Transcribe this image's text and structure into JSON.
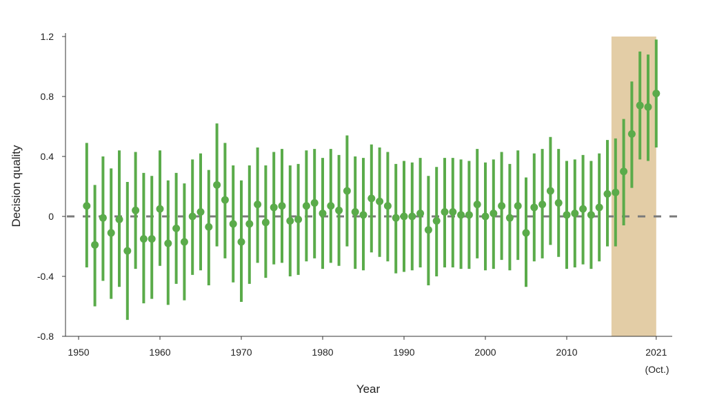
{
  "chart_data": {
    "type": "scatter",
    "subtype": "point-with-error-bars",
    "title": "",
    "xlabel": "Year",
    "ylabel": "Decision quality",
    "ylim": [
      -0.8,
      1.2
    ],
    "xlim": [
      1950,
      2021
    ],
    "y_ticks": [
      "1.2",
      "0.8",
      "0.4",
      "0",
      "-0.4",
      "-0.8"
    ],
    "y_tick_values": [
      1.2,
      0.8,
      0.4,
      0,
      -0.4,
      -0.8
    ],
    "x_ticks": [
      "1950",
      "1960",
      "1970",
      "1980",
      "1990",
      "2000",
      "2010",
      "2021"
    ],
    "x_tick_values": [
      1950,
      1960,
      1970,
      1980,
      1990,
      2000,
      2010,
      2021
    ],
    "x_tick_note": "(Oct.)",
    "reference_line": {
      "y": 0,
      "style": "dashed",
      "color": "#7a7a7a"
    },
    "highlight_region": {
      "x": [
        2015.5,
        2021
      ],
      "color": "#e3cda6"
    },
    "grid": false,
    "point_color": "#5aab4a",
    "years": [
      1951,
      1952,
      1953,
      1954,
      1955,
      1956,
      1957,
      1958,
      1959,
      1960,
      1961,
      1962,
      1963,
      1964,
      1965,
      1966,
      1967,
      1968,
      1969,
      1970,
      1971,
      1972,
      1973,
      1974,
      1975,
      1976,
      1977,
      1978,
      1979,
      1980,
      1981,
      1982,
      1983,
      1984,
      1985,
      1986,
      1987,
      1988,
      1989,
      1990,
      1991,
      1992,
      1993,
      1994,
      1995,
      1996,
      1997,
      1998,
      1999,
      2000,
      2001,
      2002,
      2003,
      2004,
      2005,
      2006,
      2007,
      2008,
      2009,
      2010,
      2011,
      2012,
      2013,
      2014,
      2015,
      2016,
      2017,
      2018,
      2019,
      2020,
      2021
    ],
    "values": [
      0.07,
      -0.19,
      -0.01,
      -0.11,
      -0.02,
      -0.23,
      0.04,
      -0.15,
      -0.15,
      0.05,
      -0.18,
      -0.08,
      -0.17,
      0.0,
      0.03,
      -0.07,
      0.21,
      0.11,
      -0.05,
      -0.17,
      -0.05,
      0.08,
      -0.04,
      0.06,
      0.07,
      -0.03,
      -0.02,
      0.07,
      0.09,
      0.02,
      0.07,
      0.04,
      0.17,
      0.03,
      0.01,
      0.12,
      0.1,
      0.07,
      -0.01,
      0.0,
      0.0,
      0.02,
      -0.09,
      -0.03,
      0.03,
      0.03,
      0.01,
      0.01,
      0.08,
      0.0,
      0.02,
      0.07,
      -0.01,
      0.07,
      -0.11,
      0.06,
      0.08,
      0.17,
      0.09,
      0.01,
      0.02,
      0.05,
      0.01,
      0.06,
      0.15,
      0.16,
      0.3,
      0.55,
      0.74,
      0.73,
      0.82
    ],
    "upper": [
      0.49,
      0.21,
      0.4,
      0.32,
      0.44,
      0.23,
      0.43,
      0.29,
      0.27,
      0.44,
      0.24,
      0.29,
      0.22,
      0.38,
      0.42,
      0.31,
      0.62,
      0.49,
      0.34,
      0.24,
      0.34,
      0.46,
      0.34,
      0.43,
      0.45,
      0.34,
      0.35,
      0.44,
      0.45,
      0.39,
      0.45,
      0.41,
      0.54,
      0.4,
      0.39,
      0.48,
      0.46,
      0.43,
      0.35,
      0.37,
      0.36,
      0.39,
      0.27,
      0.33,
      0.39,
      0.39,
      0.38,
      0.37,
      0.45,
      0.36,
      0.38,
      0.43,
      0.35,
      0.44,
      0.26,
      0.42,
      0.45,
      0.53,
      0.45,
      0.37,
      0.38,
      0.41,
      0.37,
      0.42,
      0.51,
      0.52,
      0.65,
      0.9,
      1.1,
      1.08,
      1.18
    ],
    "lower": [
      -0.34,
      -0.6,
      -0.43,
      -0.55,
      -0.47,
      -0.69,
      -0.35,
      -0.58,
      -0.55,
      -0.33,
      -0.59,
      -0.45,
      -0.56,
      -0.39,
      -0.36,
      -0.46,
      -0.2,
      -0.28,
      -0.44,
      -0.57,
      -0.45,
      -0.31,
      -0.41,
      -0.32,
      -0.31,
      -0.4,
      -0.39,
      -0.3,
      -0.28,
      -0.35,
      -0.31,
      -0.33,
      -0.2,
      -0.35,
      -0.36,
      -0.24,
      -0.27,
      -0.3,
      -0.38,
      -0.37,
      -0.36,
      -0.34,
      -0.46,
      -0.4,
      -0.34,
      -0.34,
      -0.35,
      -0.35,
      -0.28,
      -0.36,
      -0.35,
      -0.29,
      -0.36,
      -0.29,
      -0.47,
      -0.3,
      -0.28,
      -0.19,
      -0.27,
      -0.35,
      -0.34,
      -0.32,
      -0.35,
      -0.3,
      -0.2,
      -0.2,
      -0.06,
      0.19,
      0.38,
      0.37,
      0.46
    ]
  }
}
